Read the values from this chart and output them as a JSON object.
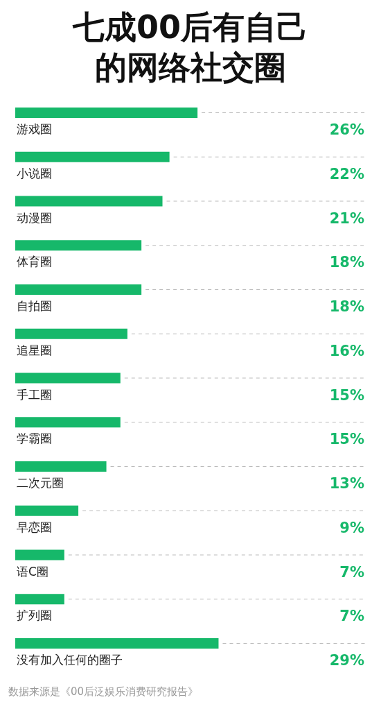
{
  "chart_data": {
    "type": "bar",
    "orientation": "horizontal",
    "title": "七成00后有自己的网络社交圈",
    "categories": [
      "游戏圈",
      "小说圈",
      "动漫圈",
      "体育圈",
      "自拍圈",
      "追星圈",
      "手工圈",
      "学霸圈",
      "二次元圈",
      "早恋圈",
      "语C圈",
      "扩列圈",
      "没有加入任何的圈子"
    ],
    "values": [
      26,
      22,
      21,
      18,
      18,
      16,
      15,
      15,
      13,
      9,
      7,
      7,
      29
    ],
    "value_labels": [
      "26%",
      "22%",
      "21%",
      "18%",
      "18%",
      "16%",
      "15%",
      "15%",
      "13%",
      "9%",
      "7%",
      "7%",
      "29%"
    ],
    "color": "#16b86a",
    "annotations": [
      "数据来源是《00后泛娱乐消费研究报告》"
    ]
  }
}
